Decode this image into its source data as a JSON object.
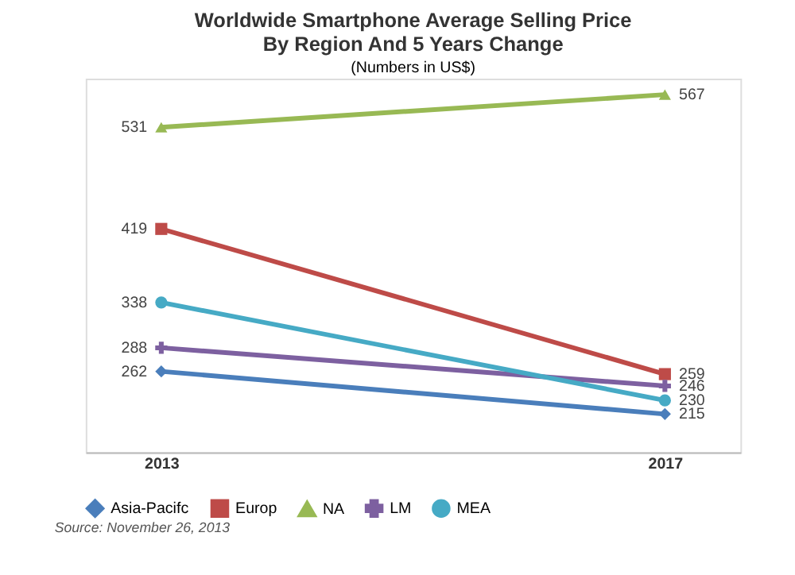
{
  "chart_data": {
    "type": "line",
    "title": "Worldwide Smartphone Average Selling Price",
    "subtitle": "By Region And 5 Years Change",
    "ylabel": "(Numbers in US$)",
    "categories": [
      "2013",
      "2017"
    ],
    "series": [
      {
        "name": "Asia-Pacifc",
        "color": "#4a7ebb",
        "marker": "diamond",
        "values": [
          262,
          215
        ]
      },
      {
        "name": "Europ",
        "color": "#be4b48",
        "marker": "square",
        "values": [
          419,
          259
        ]
      },
      {
        "name": "NA",
        "color": "#98b954",
        "marker": "triangle",
        "values": [
          531,
          567
        ]
      },
      {
        "name": "LM",
        "color": "#7d60a0",
        "marker": "cross",
        "values": [
          288,
          246
        ]
      },
      {
        "name": "MEA",
        "color": "#46aac5",
        "marker": "circle",
        "values": [
          338,
          230
        ]
      }
    ],
    "data_labels": true,
    "legend": "bottom",
    "grid": false,
    "annotations": [
      "Source: November 26, 2013"
    ]
  }
}
